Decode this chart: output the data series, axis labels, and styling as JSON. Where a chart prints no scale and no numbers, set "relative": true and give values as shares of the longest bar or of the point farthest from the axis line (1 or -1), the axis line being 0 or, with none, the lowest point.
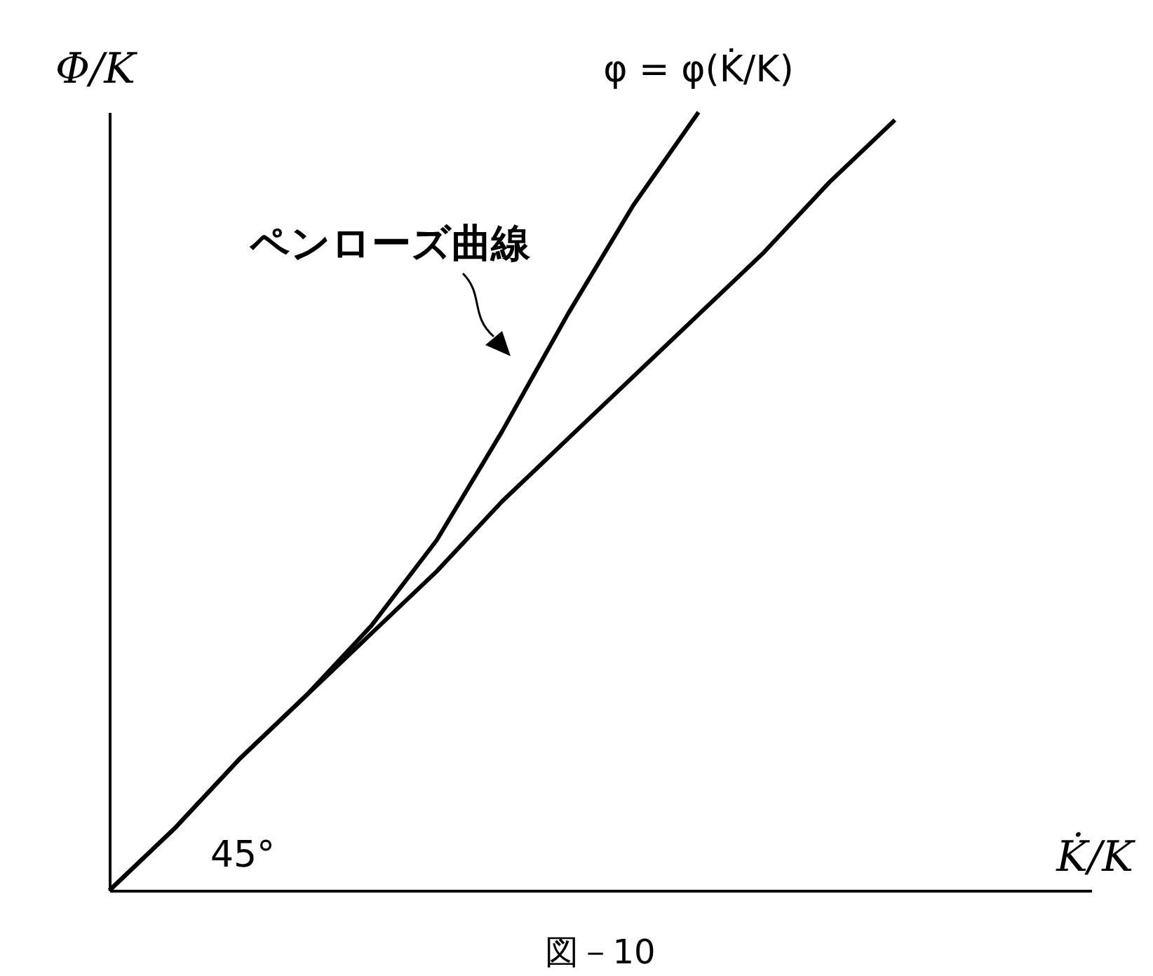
{
  "chart_data": {
    "type": "line",
    "relative": true,
    "ylabel": "Φ/K",
    "xlabel": "K̇/K",
    "categories": [
      null,
      null,
      null,
      null,
      null,
      null,
      null,
      null,
      null,
      null,
      null,
      null,
      null,
      null,
      null,
      null
    ],
    "series": [
      {
        "name": "φ = φ(K̇/K)",
        "color": "#000000",
        "values": [
          0,
          0.08,
          0.17,
          0.25,
          0.34,
          0.45,
          0.59,
          0.74,
          0.88,
          1,
          null,
          null,
          null,
          null,
          null,
          null
        ]
      },
      {
        "color": "#000000",
        "values": [
          0,
          0.08,
          0.17,
          0.25,
          0.33,
          0.41,
          0.5,
          0.58,
          0.66,
          0.74,
          0.82,
          0.91,
          0.99,
          null,
          null,
          null
        ]
      }
    ],
    "annotations": [
      "ペンローズ曲線",
      "45°",
      "図－10"
    ],
    "grid": false,
    "line_style": "solid",
    "marker": "none"
  }
}
